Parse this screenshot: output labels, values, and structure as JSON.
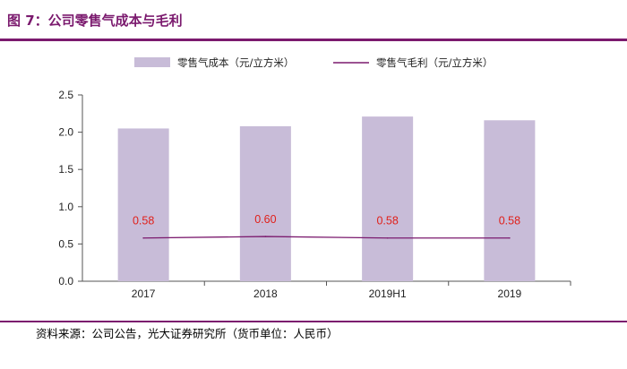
{
  "figure": {
    "title": "图 7：公司零售气成本与毛利",
    "source": "资料来源：公司公告，光大证券研究所（货币单位：人民币）"
  },
  "colors": {
    "bar": "#c8bcd8",
    "line": "#7b1a6e",
    "label": "#e0201a",
    "accent": "#7b1a6e"
  },
  "chart_data": {
    "type": "bar",
    "title": "",
    "xlabel": "",
    "ylabel": "",
    "categories": [
      "2017",
      "2018",
      "2019H1",
      "2019"
    ],
    "ylim": [
      0,
      2.5
    ],
    "yticks": [
      "0.0",
      "0.5",
      "1.0",
      "1.5",
      "2.0",
      "2.5"
    ],
    "series": [
      {
        "name": "零售气成本（元/立方米）",
        "type": "bar",
        "values": [
          2.05,
          2.08,
          2.21,
          2.16
        ]
      },
      {
        "name": "零售气毛利（元/立方米）",
        "type": "line",
        "values": [
          0.58,
          0.6,
          0.58,
          0.58
        ],
        "data_labels": [
          "0.58",
          "0.60",
          "0.58",
          "0.58"
        ]
      }
    ],
    "legend": "top",
    "grid": false
  }
}
